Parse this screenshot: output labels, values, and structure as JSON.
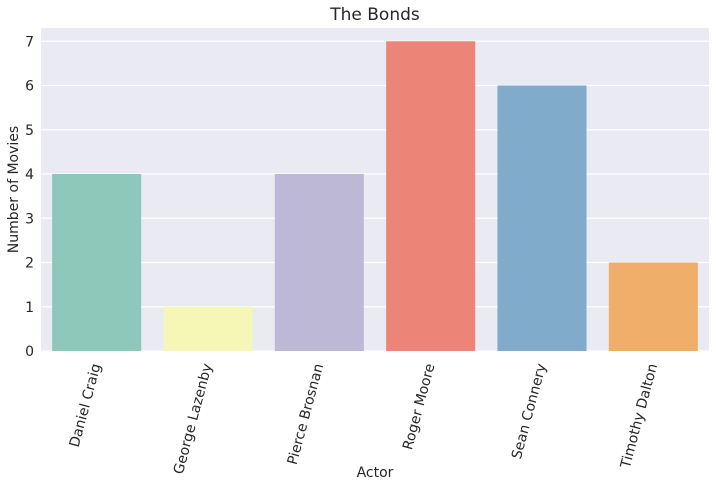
{
  "chart_data": {
    "type": "bar",
    "title": "The Bonds",
    "xlabel": "Actor",
    "ylabel": "Number of Movies",
    "categories": [
      "Daniel Craig",
      "George Lazenby",
      "Pierce Brosnan",
      "Roger Moore",
      "Sean Connery",
      "Timothy Dalton"
    ],
    "values": [
      4,
      1,
      4,
      7,
      6,
      2
    ],
    "bar_colors": [
      "#8dc8bb",
      "#f6f6b6",
      "#bcb8d6",
      "#ec8478",
      "#81abca",
      "#efae6a"
    ],
    "ylim": [
      0,
      7.3
    ],
    "yticks": [
      0,
      1,
      2,
      3,
      4,
      5,
      6,
      7
    ],
    "grid": true,
    "plot_background": "#eaeaf2",
    "grid_color": "#ffffff"
  }
}
